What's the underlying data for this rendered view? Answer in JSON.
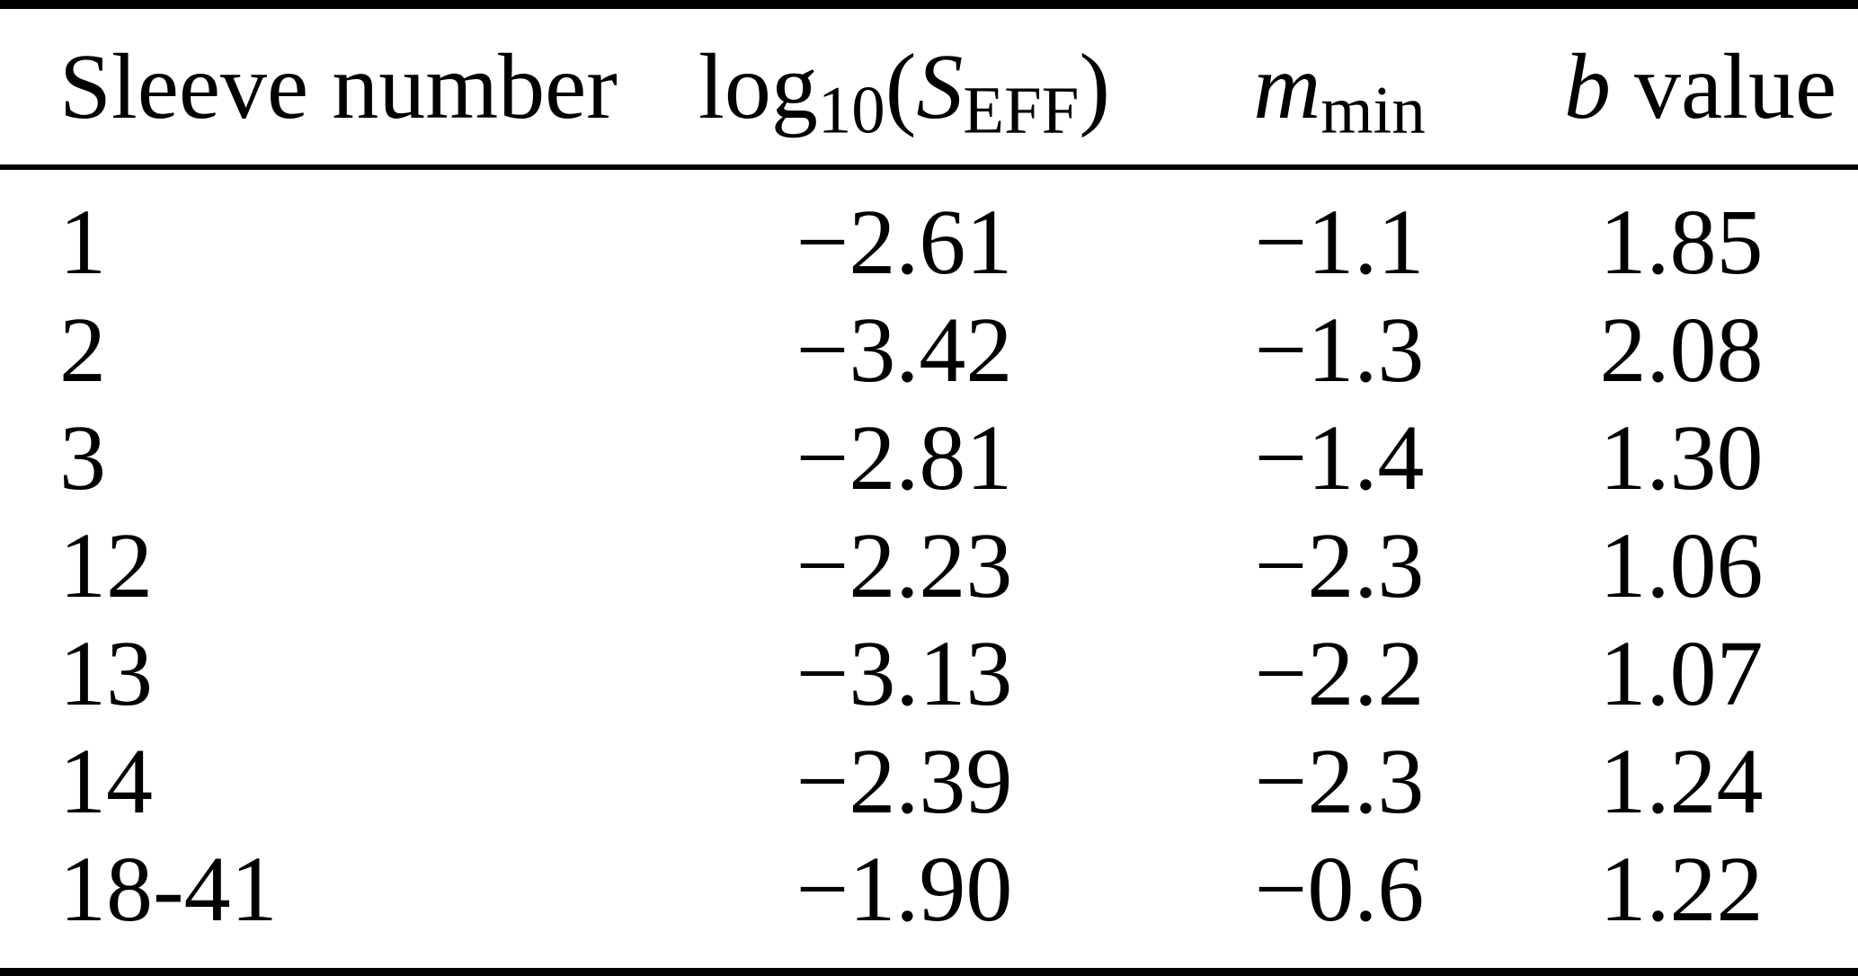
{
  "table": {
    "header": {
      "sleeve": "Sleeve number",
      "log_prefix": "log",
      "log_sub": "10",
      "log_open": "(",
      "log_S": "S",
      "log_S_sub": "EFF",
      "log_close": ")",
      "m_main": "m",
      "m_sub": "min",
      "b_italic": "b",
      "b_rest": "value"
    },
    "rows": [
      {
        "sleeve": "1",
        "log_seff": "−2.61",
        "m_min": "−1.1",
        "b_value": "1.85"
      },
      {
        "sleeve": "2",
        "log_seff": "−3.42",
        "m_min": "−1.3",
        "b_value": "2.08"
      },
      {
        "sleeve": "3",
        "log_seff": "−2.81",
        "m_min": "−1.4",
        "b_value": "1.30"
      },
      {
        "sleeve": "12",
        "log_seff": "−2.23",
        "m_min": "−2.3",
        "b_value": "1.06"
      },
      {
        "sleeve": "13",
        "log_seff": "−3.13",
        "m_min": "−2.2",
        "b_value": "1.07"
      },
      {
        "sleeve": "14",
        "log_seff": "−2.39",
        "m_min": "−2.3",
        "b_value": "1.24"
      },
      {
        "sleeve": "18-41",
        "log_seff": "−1.90",
        "m_min": "−0.6",
        "b_value": "1.22"
      }
    ],
    "colors": {
      "text": "#000000",
      "background": "#ffffff",
      "rule": "#000000"
    }
  },
  "chart_data": {
    "type": "table",
    "title": "",
    "columns": [
      "Sleeve number",
      "log10(S_EFF)",
      "m_min",
      "b value"
    ],
    "rows": [
      [
        "1",
        -2.61,
        -1.1,
        1.85
      ],
      [
        "2",
        -3.42,
        -1.3,
        2.08
      ],
      [
        "3",
        -2.81,
        -1.4,
        1.3
      ],
      [
        "12",
        -2.23,
        -2.3,
        1.06
      ],
      [
        "13",
        -3.13,
        -2.2,
        1.07
      ],
      [
        "14",
        -2.39,
        -2.3,
        1.24
      ],
      [
        "18-41",
        -1.9,
        -0.6,
        1.22
      ]
    ]
  }
}
